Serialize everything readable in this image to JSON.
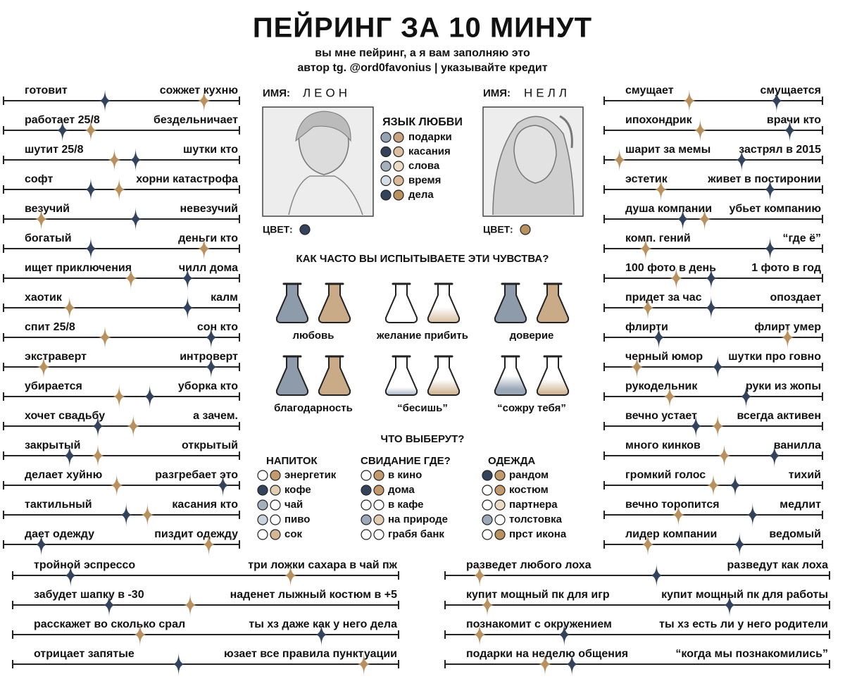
{
  "header": {
    "title": "ПЕЙРИНГ ЗА 10 МИНУТ",
    "subtitle": "вы мне пейринг, а я вам заполняю это",
    "credit": "автор tg. @ord0favonius | указывайте кредит"
  },
  "characters": [
    {
      "label": "ИМЯ:",
      "name": "ЛЕОН",
      "color_label": "ЦВЕТ:",
      "color": "#34435c"
    },
    {
      "label": "ИМЯ:",
      "name": "НЕЛЛ",
      "color_label": "ЦВЕТ:",
      "color": "#b8915f"
    }
  ],
  "love_language": {
    "title": "ЯЗЫК ЛЮБВИ",
    "items": [
      {
        "label": "подарки",
        "leon": "#93a3b5",
        "nell": "#c7a47e"
      },
      {
        "label": "касания",
        "leon": "#34435c",
        "nell": "#dbbf9e"
      },
      {
        "label": "слова",
        "leon": "#a4b0bd",
        "nell": "#ecdcc6"
      },
      {
        "label": "время",
        "leon": "#d5dde5",
        "nell": "#d9b997"
      },
      {
        "label": "дела",
        "leon": "#34435c",
        "nell": "#b8915f"
      }
    ]
  },
  "feelings": {
    "title": "КАК ЧАСТО ВЫ ИСПЫТЫВАЕТЕ ЭТИ ЧУВСТВА?",
    "items": [
      {
        "label": "любовь",
        "leon": {
          "color": "#8e9bab",
          "level": 100
        },
        "nell": {
          "color": "#c9ab88",
          "level": 100
        }
      },
      {
        "label": "желание прибить",
        "leon": {
          "color": "#dde3ea",
          "level": 0
        },
        "nell": {
          "color": "#dcc6ac",
          "level": 40
        }
      },
      {
        "label": "доверие",
        "leon": {
          "color": "#8e9bab",
          "level": 100
        },
        "nell": {
          "color": "#c9ab88",
          "level": 100
        }
      },
      {
        "label": "благодарность",
        "leon": {
          "color": "#8e9bab",
          "level": 100
        },
        "nell": {
          "color": "#c9ab88",
          "level": 100
        }
      },
      {
        "label": "“бесишь”",
        "leon": {
          "color": "#a9b6c4",
          "level": 20
        },
        "nell": {
          "color": "#d2b896",
          "level": 40
        }
      },
      {
        "label": "“сожру тебя”",
        "leon": {
          "color": "#9aa7b6",
          "level": 50
        },
        "nell": {
          "color": "#d2b896",
          "level": 40
        }
      }
    ]
  },
  "choices": {
    "title": "ЧТО ВЫБЕРУТ?",
    "groups": [
      {
        "title": "НАПИТОК",
        "options": [
          {
            "label": "энергетик",
            "leon": "#ffffff",
            "nell": "#c39a6b"
          },
          {
            "label": "кофе",
            "leon": "#34435c",
            "nell": "#e2cdb3"
          },
          {
            "label": "чай",
            "leon": "#a4b0bd",
            "nell": "#ffffff"
          },
          {
            "label": "пиво",
            "leon": "#c9d3dc",
            "nell": "#ffffff"
          },
          {
            "label": "сок",
            "leon": "#ffffff",
            "nell": "#d4b594"
          }
        ]
      },
      {
        "title": "СВИДАНИЕ ГДЕ?",
        "options": [
          {
            "label": "в кино",
            "leon": "#ffffff",
            "nell": "#c39a6b"
          },
          {
            "label": "дома",
            "leon": "#34435c",
            "nell": "#c39a6b"
          },
          {
            "label": "в кафе",
            "leon": "#ffffff",
            "nell": "#ffffff"
          },
          {
            "label": "на природе",
            "leon": "#9aa8b7",
            "nell": "#e2cdb3"
          },
          {
            "label": "грабя банк",
            "leon": "#ffffff",
            "nell": "#ffffff"
          }
        ]
      },
      {
        "title": "ОДЕЖДА",
        "options": [
          {
            "label": "рандом",
            "leon": "#34435c",
            "nell": "#c39a6b"
          },
          {
            "label": "костюм",
            "leon": "#ffffff",
            "nell": "#c39a6b"
          },
          {
            "label": "партнера",
            "leon": "#ffffff",
            "nell": "#ecdcc6"
          },
          {
            "label": "толстовка",
            "leon": "#9aa8b7",
            "nell": "#ffffff"
          },
          {
            "label": "прст икона",
            "leon": "#ffffff",
            "nell": "#b8915f"
          }
        ]
      }
    ]
  },
  "sliders": {
    "left": [
      {
        "left": "готовит",
        "right": "сожжет кухню",
        "leon": 43,
        "nell": 85
      },
      {
        "left": "работает 25/8",
        "right": "бездельничает",
        "leon": 25,
        "nell": 37
      },
      {
        "left": "шутит 25/8",
        "right": "шутки кто",
        "leon": 56,
        "nell": 47
      },
      {
        "left": "софт",
        "right": "хорни катастрофа",
        "leon": 37,
        "nell": 49
      },
      {
        "left": "везучий",
        "right": "невезучий",
        "leon": 56,
        "nell": 16
      },
      {
        "left": "богатый",
        "right": "деньги кто",
        "leon": 37,
        "nell": 85
      },
      {
        "left": "ищет приключения",
        "right": "чилл дома",
        "leon": 78,
        "nell": 54
      },
      {
        "left": "хаотик",
        "right": "калм",
        "leon": 78,
        "nell": 28
      },
      {
        "left": "спит 25/8",
        "right": "сон кто",
        "leon": 88,
        "nell": 43
      },
      {
        "left": "экстраверт",
        "right": "интроверт",
        "leon": 88,
        "nell": 17
      },
      {
        "left": "убирается",
        "right": "уборка кто",
        "leon": 62,
        "nell": 49
      },
      {
        "left": "хочет свадьбу",
        "right": "а зачем.",
        "leon": 40,
        "nell": 55
      },
      {
        "left": "закрытый",
        "right": "открытый",
        "leon": 28,
        "nell": 40
      },
      {
        "left": "делает хуйню",
        "right": "разгребает это",
        "leon": 93,
        "nell": 48
      },
      {
        "left": "тактильный",
        "right": "касания кто",
        "leon": 52,
        "nell": 61
      },
      {
        "left": "дает одежду",
        "right": "пиздит одежду",
        "leon": 16,
        "nell": 87
      }
    ],
    "right": [
      {
        "left": "смущает",
        "right": "смущается",
        "leon": 79,
        "nell": 39
      },
      {
        "left": "ипохондрик",
        "right": "врачи кто",
        "leon": 85,
        "nell": 44
      },
      {
        "left": "шарит за мемы",
        "right": "застрял в 2015",
        "leon": 63,
        "nell": 7
      },
      {
        "left": "эстетик",
        "right": "живет в постиронии",
        "leon": 76,
        "nell": 26
      },
      {
        "left": "душа компании",
        "right": "убьет компанию",
        "leon": 36,
        "nell": 46
      },
      {
        "left": "комп. гений",
        "right": "“где ё”",
        "leon": 76,
        "nell": 19
      },
      {
        "left": "100 фото в день",
        "right": "1 фото в год",
        "leon": 49,
        "nell": 33
      },
      {
        "left": "придет за час",
        "right": "опоздает",
        "leon": 49,
        "nell": 20
      },
      {
        "left": "флирти",
        "right": "флирт умер",
        "leon": 25,
        "nell": 84
      },
      {
        "left": "черный юмор",
        "right": "шутки про говно",
        "leon": 52,
        "nell": 15
      },
      {
        "left": "рукодельник",
        "right": "руки из жопы",
        "leon": 65,
        "nell": 30
      },
      {
        "left": "вечно устает",
        "right": "всегда активен",
        "leon": 42,
        "nell": 52
      },
      {
        "left": "много кинков",
        "right": "ванилла",
        "leon": 78,
        "nell": 55
      },
      {
        "left": "громкий голос",
        "right": "тихий",
        "leon": 60,
        "nell": 50
      },
      {
        "left": "вечно торопится",
        "right": "медлит",
        "leon": 68,
        "nell": 34
      },
      {
        "left": "лидер компании",
        "right": "ведомый",
        "leon": 62,
        "nell": 20
      }
    ],
    "bottom_left": [
      {
        "left": "тройной эспрессо",
        "right": "три ложки сахара в чай пж",
        "leon": 15,
        "nell": 72
      },
      {
        "left": "забудет шапку в -30",
        "right": "наденет лыжный костюм в +5",
        "leon": 25,
        "nell": 46
      },
      {
        "left": "расскажет во сколько срал",
        "right": "ты хз даже как у него дела",
        "leon": 80,
        "nell": 33
      },
      {
        "left": "отрицает запятые",
        "right": "юзает все правила пунктуации",
        "leon": 43,
        "nell": 91
      }
    ],
    "bottom_right": [
      {
        "left": "разведет любого лоха",
        "right": "разведут как лоха",
        "leon": 55,
        "nell": 9
      },
      {
        "left": "купит мощный пк для игр",
        "right": "купит мощный пк для работы",
        "leon": 74,
        "nell": 11
      },
      {
        "left": "познакомит с окружением",
        "right": "ты хз есть ли у него родители",
        "leon": 31,
        "nell": 9
      },
      {
        "left": "подарки на неделю общения",
        "right": "“когда мы познакомились”",
        "leon": 33,
        "nell": 26
      }
    ]
  }
}
